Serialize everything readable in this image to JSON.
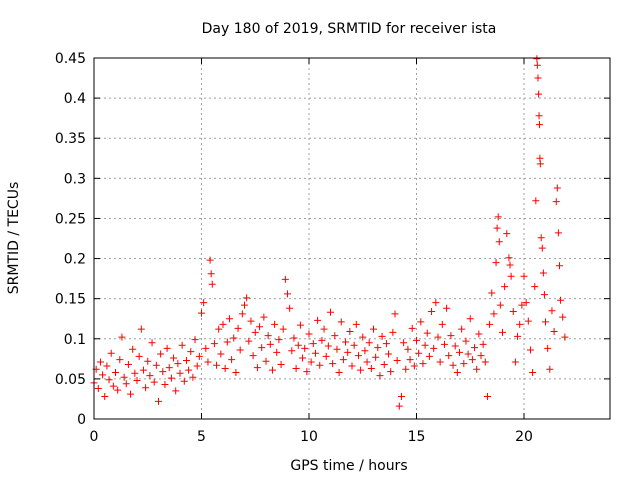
{
  "chart_data": {
    "type": "scatter",
    "title": "Day 180 of 2019, SRMTID for receiver ista",
    "xlabel": "GPS time / hours",
    "ylabel": "SRMTID / TECUs",
    "xlim": [
      0,
      24
    ],
    "ylim": [
      0,
      0.45
    ],
    "xticks": [
      0,
      5,
      10,
      15,
      20
    ],
    "xtick_labels": [
      "0",
      "5",
      "10",
      "15",
      "20"
    ],
    "yticks": [
      0,
      0.05,
      0.1,
      0.15,
      0.2,
      0.25,
      0.3,
      0.35,
      0.4,
      0.45
    ],
    "ytick_labels": [
      "0",
      "0.05",
      "0.1",
      "0.15",
      "0.2",
      "0.25",
      "0.3",
      "0.35",
      "0.4",
      "0.45"
    ],
    "grid": true,
    "marker": "+",
    "color": "#ff0000",
    "series": [
      {
        "name": "SRMTID",
        "points": [
          [
            0.0,
            0.045
          ],
          [
            0.1,
            0.062
          ],
          [
            0.2,
            0.038
          ],
          [
            0.3,
            0.071
          ],
          [
            0.4,
            0.055
          ],
          [
            0.5,
            0.028
          ],
          [
            0.6,
            0.066
          ],
          [
            0.7,
            0.049
          ],
          [
            0.8,
            0.082
          ],
          [
            0.9,
            0.041
          ],
          [
            1.0,
            0.058
          ],
          [
            1.1,
            0.036
          ],
          [
            1.2,
            0.074
          ],
          [
            1.3,
            0.102
          ],
          [
            1.4,
            0.052
          ],
          [
            1.5,
            0.044
          ],
          [
            1.6,
            0.068
          ],
          [
            1.7,
            0.031
          ],
          [
            1.8,
            0.087
          ],
          [
            1.9,
            0.057
          ],
          [
            2.0,
            0.048
          ],
          [
            2.1,
            0.078
          ],
          [
            2.2,
            0.112
          ],
          [
            2.3,
            0.061
          ],
          [
            2.4,
            0.039
          ],
          [
            2.5,
            0.072
          ],
          [
            2.6,
            0.054
          ],
          [
            2.7,
            0.095
          ],
          [
            2.8,
            0.046
          ],
          [
            2.9,
            0.067
          ],
          [
            3.0,
            0.022
          ],
          [
            3.1,
            0.081
          ],
          [
            3.2,
            0.059
          ],
          [
            3.3,
            0.043
          ],
          [
            3.4,
            0.088
          ],
          [
            3.5,
            0.064
          ],
          [
            3.6,
            0.051
          ],
          [
            3.7,
            0.076
          ],
          [
            3.8,
            0.035
          ],
          [
            3.9,
            0.069
          ],
          [
            4.0,
            0.057
          ],
          [
            4.1,
            0.092
          ],
          [
            4.2,
            0.047
          ],
          [
            4.3,
            0.073
          ],
          [
            4.4,
            0.061
          ],
          [
            4.5,
            0.084
          ],
          [
            4.6,
            0.052
          ],
          [
            4.7,
            0.099
          ],
          [
            4.8,
            0.066
          ],
          [
            4.9,
            0.078
          ],
          [
            5.0,
            0.132
          ],
          [
            5.1,
            0.145
          ],
          [
            5.2,
            0.088
          ],
          [
            5.3,
            0.071
          ],
          [
            5.4,
            0.198
          ],
          [
            5.45,
            0.181
          ],
          [
            5.5,
            0.168
          ],
          [
            5.6,
            0.094
          ],
          [
            5.7,
            0.067
          ],
          [
            5.8,
            0.112
          ],
          [
            5.9,
            0.081
          ],
          [
            6.0,
            0.118
          ],
          [
            6.1,
            0.063
          ],
          [
            6.2,
            0.096
          ],
          [
            6.3,
            0.125
          ],
          [
            6.4,
            0.074
          ],
          [
            6.5,
            0.101
          ],
          [
            6.6,
            0.058
          ],
          [
            6.7,
            0.113
          ],
          [
            6.8,
            0.086
          ],
          [
            6.9,
            0.131
          ],
          [
            7.0,
            0.142
          ],
          [
            7.1,
            0.151
          ],
          [
            7.2,
            0.097
          ],
          [
            7.3,
            0.122
          ],
          [
            7.4,
            0.079
          ],
          [
            7.5,
            0.108
          ],
          [
            7.6,
            0.064
          ],
          [
            7.7,
            0.115
          ],
          [
            7.8,
            0.089
          ],
          [
            7.9,
            0.127
          ],
          [
            8.0,
            0.072
          ],
          [
            8.1,
            0.104
          ],
          [
            8.2,
            0.093
          ],
          [
            8.3,
            0.061
          ],
          [
            8.4,
            0.118
          ],
          [
            8.5,
            0.083
          ],
          [
            8.6,
            0.099
          ],
          [
            8.7,
            0.068
          ],
          [
            8.8,
            0.112
          ],
          [
            8.9,
            0.174
          ],
          [
            9.0,
            0.156
          ],
          [
            9.1,
            0.138
          ],
          [
            9.2,
            0.085
          ],
          [
            9.3,
            0.101
          ],
          [
            9.4,
            0.063
          ],
          [
            9.5,
            0.092
          ],
          [
            9.6,
            0.117
          ],
          [
            9.7,
            0.076
          ],
          [
            9.8,
            0.088
          ],
          [
            9.9,
            0.059
          ],
          [
            10.0,
            0.106
          ],
          [
            10.1,
            0.071
          ],
          [
            10.2,
            0.094
          ],
          [
            10.3,
            0.082
          ],
          [
            10.4,
            0.123
          ],
          [
            10.5,
            0.067
          ],
          [
            10.6,
            0.098
          ],
          [
            10.7,
            0.112
          ],
          [
            10.8,
            0.078
          ],
          [
            10.9,
            0.091
          ],
          [
            11.0,
            0.133
          ],
          [
            11.1,
            0.069
          ],
          [
            11.2,
            0.104
          ],
          [
            11.3,
            0.087
          ],
          [
            11.4,
            0.058
          ],
          [
            11.5,
            0.121
          ],
          [
            11.6,
            0.074
          ],
          [
            11.7,
            0.096
          ],
          [
            11.8,
            0.083
          ],
          [
            11.9,
            0.109
          ],
          [
            12.0,
            0.066
          ],
          [
            12.1,
            0.092
          ],
          [
            12.2,
            0.118
          ],
          [
            12.3,
            0.079
          ],
          [
            12.4,
            0.061
          ],
          [
            12.5,
            0.102
          ],
          [
            12.6,
            0.085
          ],
          [
            12.7,
            0.071
          ],
          [
            12.8,
            0.095
          ],
          [
            12.9,
            0.063
          ],
          [
            13.0,
            0.112
          ],
          [
            13.1,
            0.077
          ],
          [
            13.2,
            0.089
          ],
          [
            13.3,
            0.054
          ],
          [
            13.4,
            0.103
          ],
          [
            13.5,
            0.068
          ],
          [
            13.6,
            0.094
          ],
          [
            13.7,
            0.081
          ],
          [
            13.8,
            0.059
          ],
          [
            13.9,
            0.108
          ],
          [
            14.0,
            0.131
          ],
          [
            14.1,
            0.073
          ],
          [
            14.2,
            0.016
          ],
          [
            14.3,
            0.028
          ],
          [
            14.4,
            0.095
          ],
          [
            14.5,
            0.062
          ],
          [
            14.6,
            0.087
          ],
          [
            14.7,
            0.074
          ],
          [
            14.8,
            0.113
          ],
          [
            14.9,
            0.066
          ],
          [
            15.0,
            0.098
          ],
          [
            15.1,
            0.082
          ],
          [
            15.2,
            0.121
          ],
          [
            15.3,
            0.069
          ],
          [
            15.4,
            0.092
          ],
          [
            15.5,
            0.107
          ],
          [
            15.6,
            0.078
          ],
          [
            15.7,
            0.134
          ],
          [
            15.8,
            0.088
          ],
          [
            15.9,
            0.145
          ],
          [
            16.0,
            0.102
          ],
          [
            16.1,
            0.071
          ],
          [
            16.2,
            0.118
          ],
          [
            16.3,
            0.093
          ],
          [
            16.4,
            0.138
          ],
          [
            16.5,
            0.079
          ],
          [
            16.6,
            0.104
          ],
          [
            16.7,
            0.067
          ],
          [
            16.8,
            0.091
          ],
          [
            16.9,
            0.058
          ],
          [
            17.0,
            0.083
          ],
          [
            17.1,
            0.112
          ],
          [
            17.2,
            0.069
          ],
          [
            17.3,
            0.097
          ],
          [
            17.4,
            0.081
          ],
          [
            17.5,
            0.125
          ],
          [
            17.6,
            0.074
          ],
          [
            17.7,
            0.089
          ],
          [
            17.8,
            0.062
          ],
          [
            17.9,
            0.106
          ],
          [
            18.0,
            0.079
          ],
          [
            18.1,
            0.093
          ],
          [
            18.2,
            0.071
          ],
          [
            18.3,
            0.028
          ],
          [
            18.4,
            0.118
          ],
          [
            18.5,
            0.157
          ],
          [
            18.6,
            0.131
          ],
          [
            18.7,
            0.195
          ],
          [
            18.75,
            0.238
          ],
          [
            18.8,
            0.252
          ],
          [
            18.85,
            0.221
          ],
          [
            18.9,
            0.142
          ],
          [
            19.0,
            0.108
          ],
          [
            19.1,
            0.165
          ],
          [
            19.2,
            0.231
          ],
          [
            19.3,
            0.201
          ],
          [
            19.35,
            0.192
          ],
          [
            19.4,
            0.178
          ],
          [
            19.5,
            0.134
          ],
          [
            19.6,
            0.071
          ],
          [
            19.7,
            0.103
          ],
          [
            19.8,
            0.118
          ],
          [
            19.9,
            0.142
          ],
          [
            20.0,
            0.178
          ],
          [
            20.1,
            0.145
          ],
          [
            20.2,
            0.122
          ],
          [
            20.3,
            0.086
          ],
          [
            20.4,
            0.058
          ],
          [
            20.5,
            0.165
          ],
          [
            20.55,
            0.272
          ],
          [
            20.6,
            0.449
          ],
          [
            20.62,
            0.441
          ],
          [
            20.65,
            0.425
          ],
          [
            20.68,
            0.405
          ],
          [
            20.7,
            0.378
          ],
          [
            20.72,
            0.367
          ],
          [
            20.74,
            0.325
          ],
          [
            20.76,
            0.318
          ],
          [
            20.8,
            0.226
          ],
          [
            20.85,
            0.213
          ],
          [
            20.9,
            0.182
          ],
          [
            20.95,
            0.155
          ],
          [
            21.0,
            0.121
          ],
          [
            21.1,
            0.088
          ],
          [
            21.2,
            0.062
          ],
          [
            21.3,
            0.135
          ],
          [
            21.4,
            0.109
          ],
          [
            21.5,
            0.271
          ],
          [
            21.55,
            0.288
          ],
          [
            21.6,
            0.232
          ],
          [
            21.65,
            0.191
          ],
          [
            21.7,
            0.148
          ],
          [
            21.8,
            0.127
          ],
          [
            21.9,
            0.102
          ]
        ]
      }
    ]
  }
}
